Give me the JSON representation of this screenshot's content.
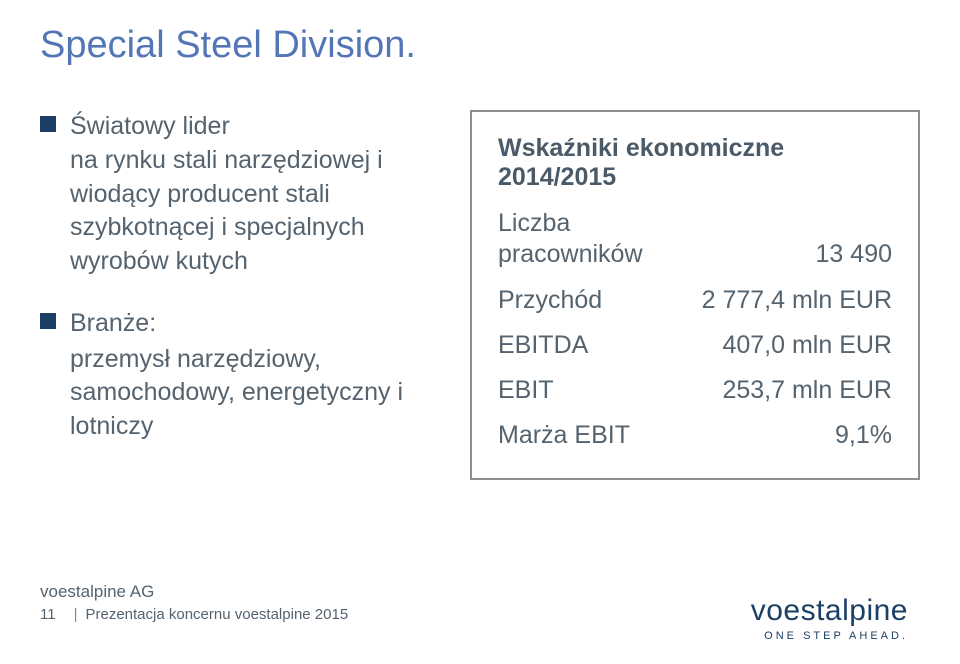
{
  "colors": {
    "title": "#5576b6",
    "body_text": "#55636f",
    "bullet_square": "#1c3f66",
    "box_border": "#8a8f94",
    "logo": "#1c3f66",
    "background": "#ffffff"
  },
  "typography": {
    "title_fontsize": 38,
    "body_fontsize": 25,
    "metrics_title_fontsize": 25,
    "footer_company_fontsize": 17,
    "footer_line_fontsize": 15,
    "logo_fontsize": 30,
    "tagline_fontsize": 11,
    "tagline_letter_spacing": 3,
    "font_family": "Arial, Helvetica, sans-serif"
  },
  "title": "Special Steel Division.",
  "bullets": [
    {
      "text": "Światowy lider\nna rynku stali narzędziowej i wiodący producent stali szybkotnącej i specjalnych wyrobów kutych"
    },
    {
      "text": "Branże:",
      "subtext": "przemysł narzędziowy, samochodowy, energetyczny i lotniczy"
    }
  ],
  "metrics": {
    "heading": "Wskaźniki ekonomiczne 2014/2015",
    "rows": [
      {
        "label": "Liczba\npracowników",
        "value": "13 490"
      },
      {
        "label": "Przychód",
        "value": "2 777,4 mln EUR"
      },
      {
        "label": "EBITDA",
        "value": "407,0 mln EUR"
      },
      {
        "label": "EBIT",
        "value": "253,7 mln EUR"
      },
      {
        "label": "Marża EBIT",
        "value": "9,1%"
      }
    ],
    "box_border_width": 2
  },
  "footer": {
    "company": "voestalpine AG",
    "page": "11",
    "caption": "Prezentacja koncernu voestalpine 2015",
    "logo": "voestalpine",
    "tagline": "ONE STEP AHEAD."
  }
}
